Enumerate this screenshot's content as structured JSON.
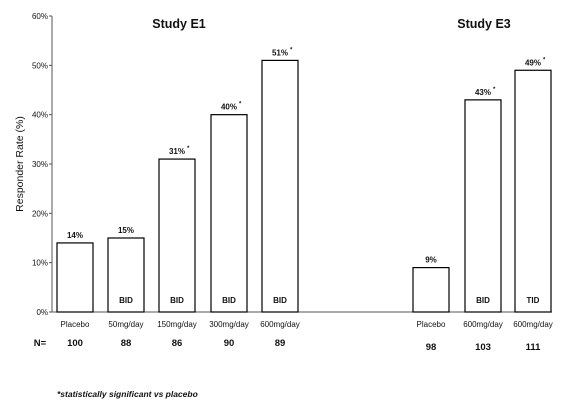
{
  "chart_data": {
    "type": "bar",
    "ylabel": "Responder Rate (%)",
    "ylim": [
      0,
      60
    ],
    "yticks": [
      "0%",
      "10%",
      "20%",
      "30%",
      "40%",
      "50%",
      "60%"
    ],
    "grid": false,
    "n_label": "N=",
    "groups": [
      {
        "title": "Study E1",
        "bars": [
          {
            "category": "Placebo",
            "value": 14,
            "label": "14%",
            "significant": false,
            "regimen": "",
            "n": "100"
          },
          {
            "category": "50mg/day",
            "value": 15,
            "label": "15%",
            "significant": false,
            "regimen": "BID",
            "n": "88"
          },
          {
            "category": "150mg/day",
            "value": 31,
            "label": "31%",
            "significant": true,
            "regimen": "BID",
            "n": "86"
          },
          {
            "category": "300mg/day",
            "value": 40,
            "label": "40%",
            "significant": true,
            "regimen": "BID",
            "n": "90"
          },
          {
            "category": "600mg/day",
            "value": 51,
            "label": "51%",
            "significant": true,
            "regimen": "BID",
            "n": "89"
          }
        ]
      },
      {
        "title": "Study E3",
        "bars": [
          {
            "category": "Placebo",
            "value": 9,
            "label": "9%",
            "significant": false,
            "regimen": "",
            "n": "98"
          },
          {
            "category": "600mg/day",
            "value": 43,
            "label": "43%",
            "significant": true,
            "regimen": "BID",
            "n": "103"
          },
          {
            "category": "600mg/day",
            "value": 49,
            "label": "49%",
            "significant": true,
            "regimen": "TID",
            "n": "111"
          }
        ]
      }
    ],
    "significance_marker": "*",
    "footnote": "*statistically significant vs placebo"
  }
}
